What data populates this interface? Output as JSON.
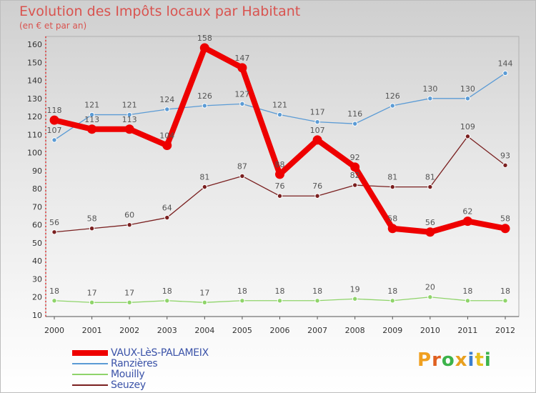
{
  "title": "Evolution des Impôts locaux par Habitant",
  "subtitle": "(en € et par an)",
  "logo": {
    "text": "Proxiti",
    "letter_colors": [
      "#f0a020",
      "#e06020",
      "#3cb34a",
      "#e8a020",
      "#3a7fd0",
      "#e8c020",
      "#3cb34a"
    ]
  },
  "chart_data": {
    "type": "line",
    "title": "Evolution des Impôts locaux par Habitant",
    "subtitle": "(en € et par an)",
    "x": [
      "2000",
      "2001",
      "2002",
      "2003",
      "2004",
      "2005",
      "2006",
      "2007",
      "2008",
      "2009",
      "2010",
      "2011",
      "2012"
    ],
    "ylim": [
      10,
      160
    ],
    "yticks": [
      "10",
      "20",
      "30",
      "40",
      "50",
      "60",
      "70",
      "80",
      "90",
      "100",
      "110",
      "120",
      "130",
      "140",
      "150",
      "160"
    ],
    "grid": false,
    "legend_position": "bottom-left",
    "series": [
      {
        "name": "VAUX-LèS-PALAMEIX",
        "color": "#ee0000",
        "values": [
          118,
          113,
          113,
          104,
          158,
          147,
          88,
          107,
          92,
          58,
          56,
          62,
          58
        ],
        "labels": [
          "118",
          "113",
          "113",
          "104",
          "158",
          "147",
          "88",
          "107",
          "92",
          "58",
          "56",
          "62",
          "58"
        ]
      },
      {
        "name": "Ranzières",
        "color": "#5b9bd5",
        "values": [
          107,
          121,
          121,
          124,
          126,
          127,
          121,
          117,
          116,
          126,
          130,
          130,
          144
        ],
        "labels": [
          "107",
          "121",
          "121",
          "124",
          "126",
          "127",
          "121",
          "117",
          "116",
          "126",
          "130",
          "130",
          "144"
        ]
      },
      {
        "name": "Mouilly",
        "color": "#8fd46a",
        "values": [
          18,
          17,
          17,
          18,
          17,
          18,
          18,
          18,
          19,
          18,
          20,
          18,
          18
        ],
        "labels": [
          "18",
          "17",
          "17",
          "18",
          "17",
          "18",
          "18",
          "18",
          "19",
          "18",
          "20",
          "18",
          "18"
        ]
      },
      {
        "name": "Seuzey",
        "color": "#7a2020",
        "values": [
          56,
          58,
          60,
          64,
          81,
          87,
          76,
          76,
          82,
          81,
          81,
          109,
          93
        ],
        "labels": [
          "56",
          "58",
          "60",
          "64",
          "81",
          "87",
          "76",
          "76",
          "82",
          "81",
          "81",
          "109",
          "93"
        ]
      }
    ]
  }
}
